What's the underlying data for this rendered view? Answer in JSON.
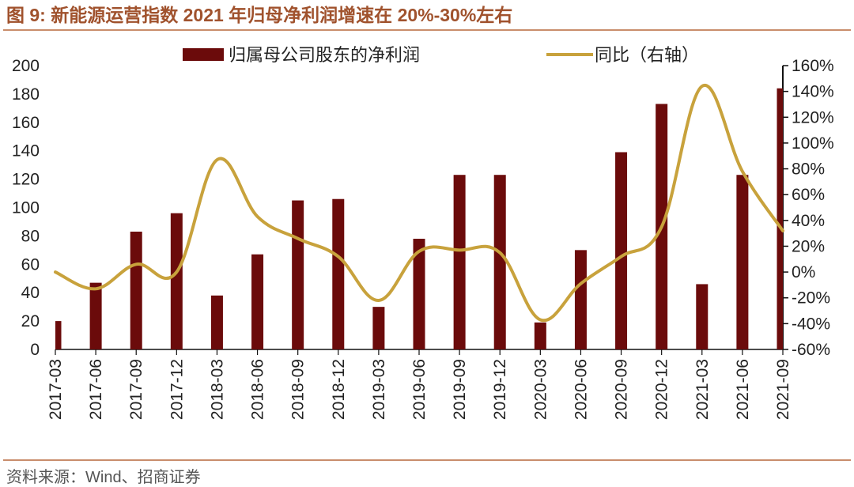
{
  "header": {
    "title": "图 9:  新能源运营指数 2021 年归母净利润增速在 20%-30%左右"
  },
  "footer": {
    "source": "资料来源：Wind、招商证券"
  },
  "chart_data": {
    "type": "bar",
    "title": "图 9:  新能源运营指数 2021 年归母净利润增速在 20%-30%左右",
    "categories": [
      "2017-03",
      "2017-06",
      "2017-09",
      "2017-12",
      "2018-03",
      "2018-06",
      "2018-09",
      "2018-12",
      "2019-03",
      "2019-06",
      "2019-09",
      "2019-12",
      "2020-03",
      "2020-06",
      "2020-09",
      "2020-12",
      "2021-03",
      "2021-06",
      "2021-09"
    ],
    "series": [
      {
        "name": "归属母公司股东的净利润",
        "type": "bar",
        "axis": "left",
        "color": "#6b0b0b",
        "values": [
          20,
          47,
          83,
          96,
          38,
          67,
          105,
          106,
          30,
          78,
          123,
          123,
          19,
          70,
          139,
          173,
          46,
          123,
          184
        ]
      },
      {
        "name": "同比（右轴）",
        "type": "line",
        "axis": "right",
        "color": "#c8a23c",
        "values": [
          0,
          -13,
          6,
          0,
          87,
          43,
          26,
          12,
          -22,
          16,
          17,
          15,
          -37,
          -9,
          12,
          35,
          144,
          78,
          32
        ]
      }
    ],
    "ylim": [
      0,
      200
    ],
    "yticks": [
      0,
      20,
      40,
      60,
      80,
      100,
      120,
      140,
      160,
      180,
      200
    ],
    "y2lim": [
      -60,
      160
    ],
    "y2ticks": [
      "-60%",
      "-40%",
      "-20%",
      "0%",
      "20%",
      "40%",
      "60%",
      "80%",
      "100%",
      "120%",
      "140%",
      "160%"
    ],
    "xlabel": "",
    "ylabel": "",
    "legend_position": "top"
  }
}
